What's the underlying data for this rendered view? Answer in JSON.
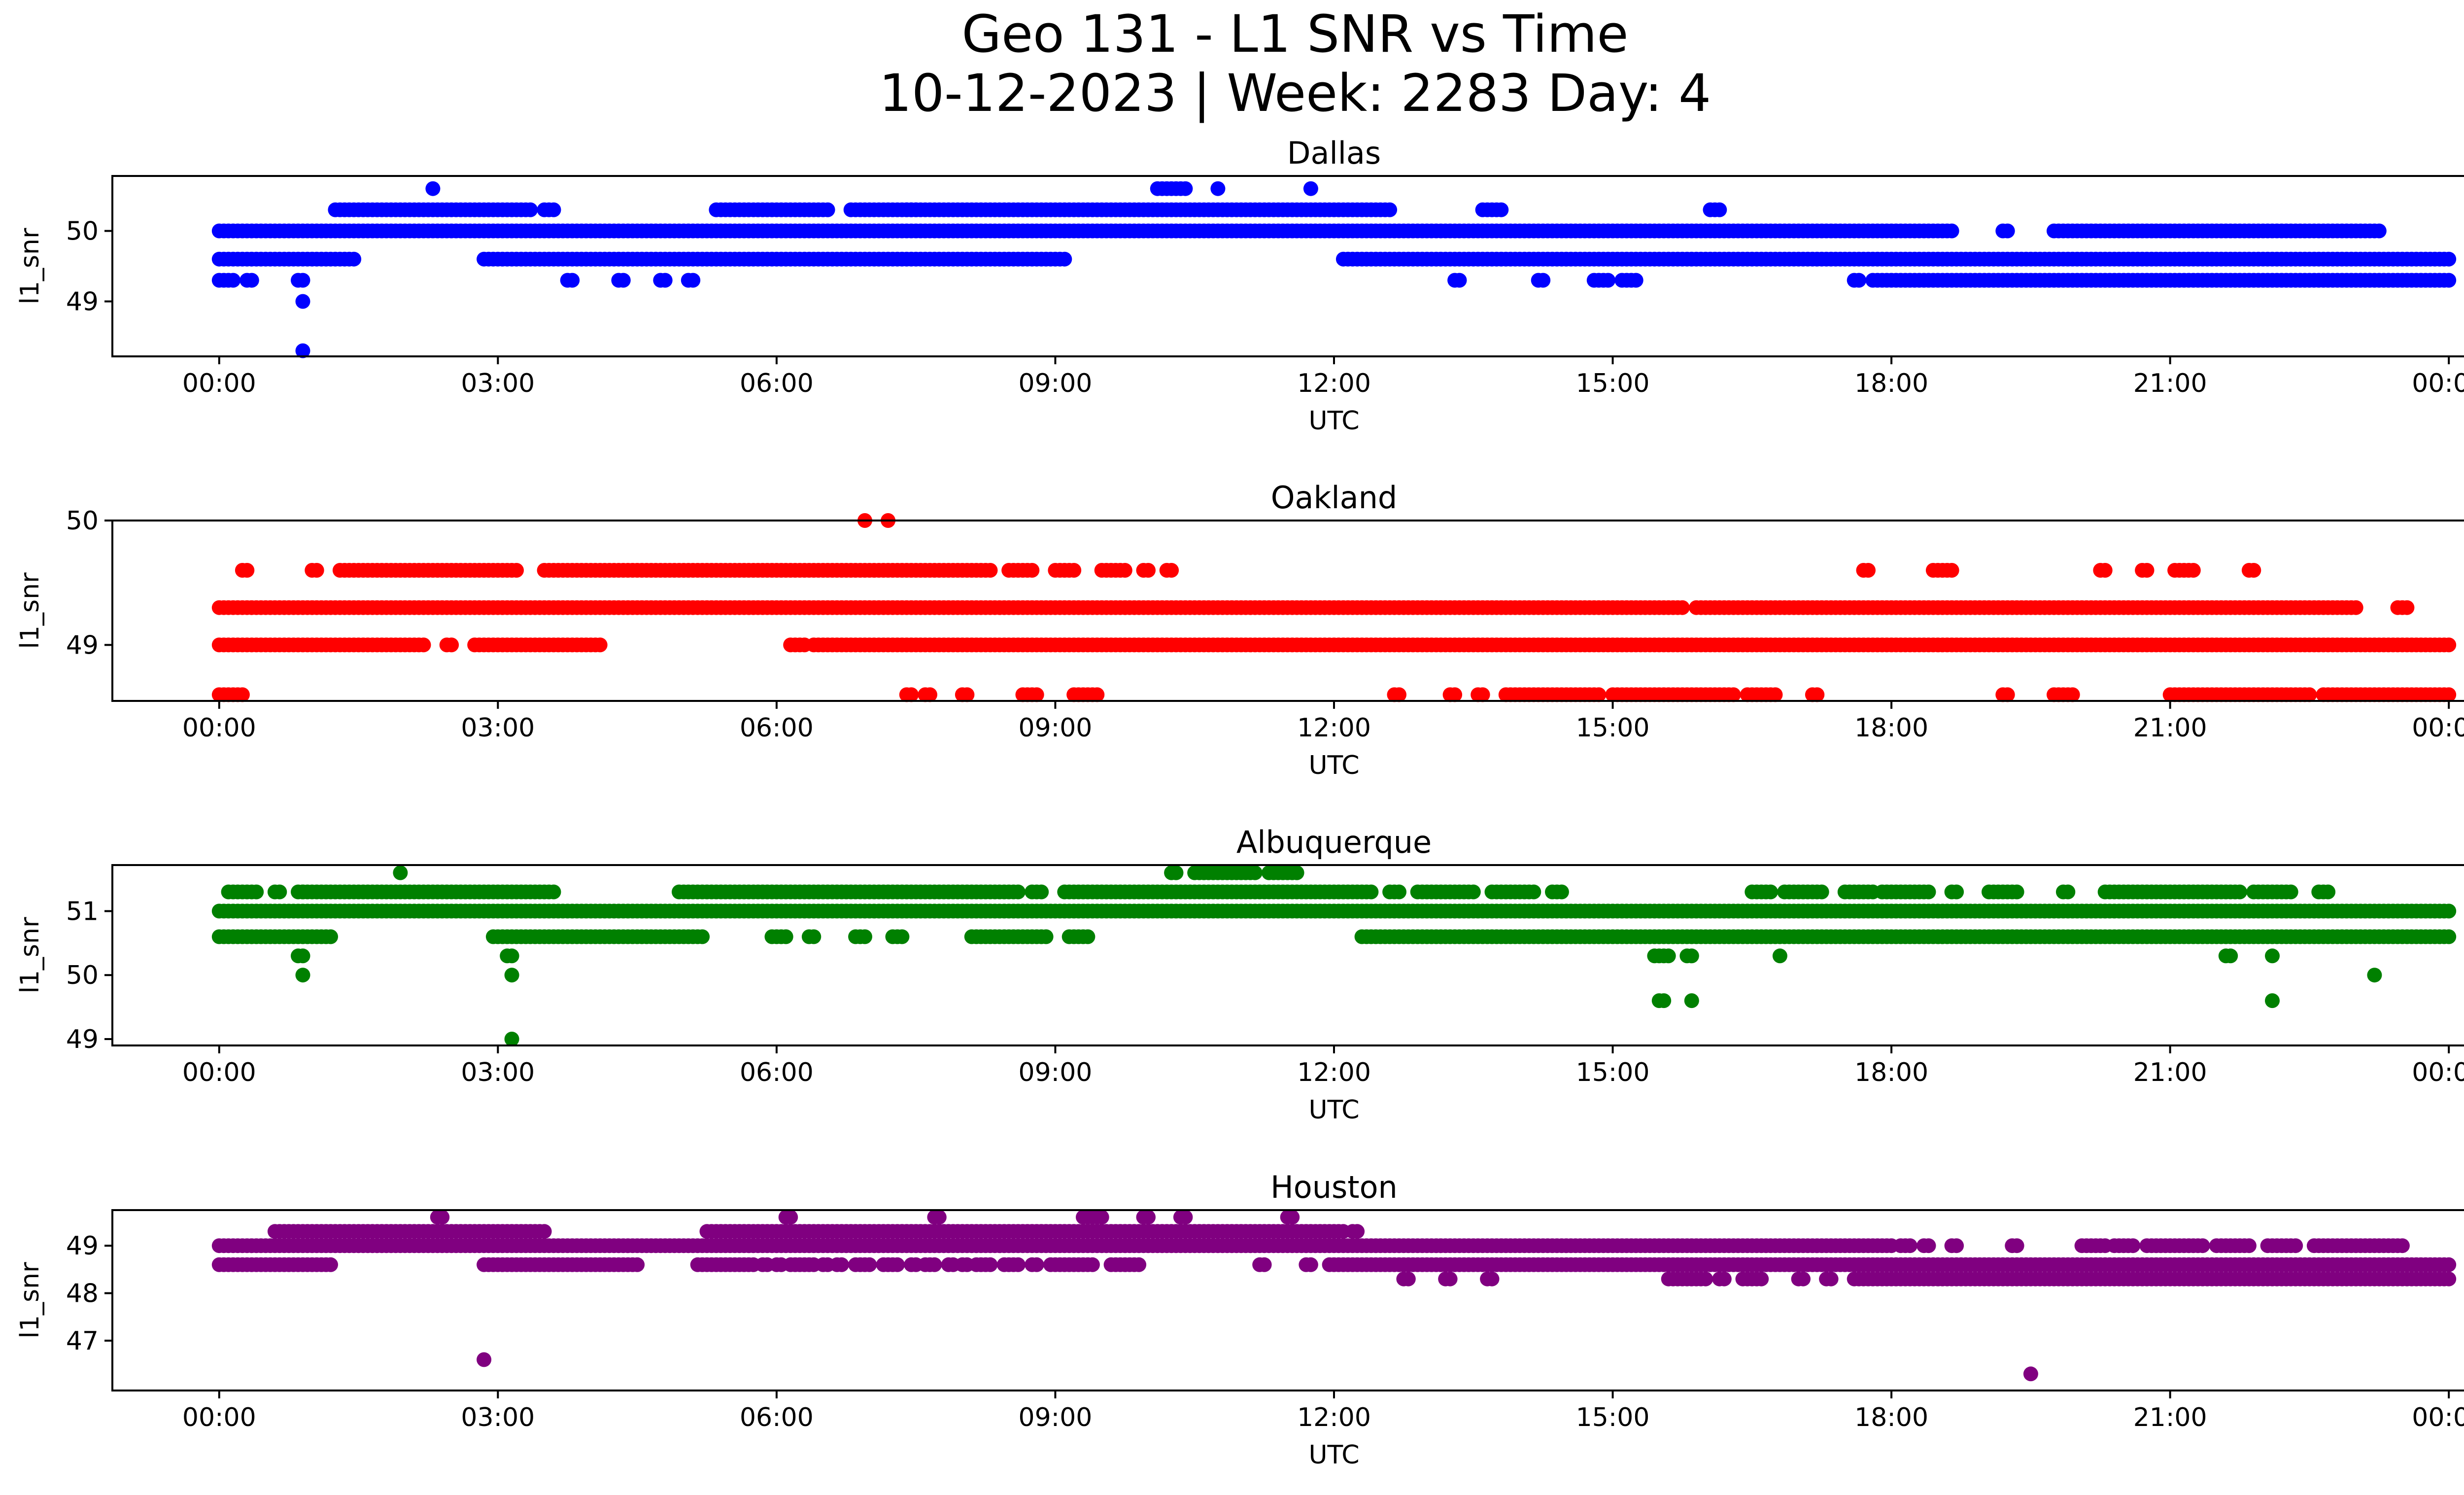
{
  "figure": {
    "title_line1": "Geo 131 - L1 SNR vs Time",
    "title_line2": "10-12-2023 | Week: 2283 Day: 4"
  },
  "chart_data": [
    {
      "type": "scatter",
      "title": "Dallas",
      "xlabel": "UTC",
      "ylabel": "l1_snr",
      "color": "#0000ff",
      "xticks": [
        "00:00",
        "03:00",
        "06:00",
        "09:00",
        "12:00",
        "15:00",
        "18:00",
        "21:00",
        "00:00"
      ],
      "yticks": [
        49,
        50
      ],
      "xlim_hours": [
        -1.15,
        25.15
      ],
      "ylim": [
        48.22,
        50.78
      ],
      "series": [
        {
          "value": 50.0,
          "segments": [
            [
              0,
              18.65
            ],
            [
              19.2,
              19.25
            ],
            [
              19.75,
              23.25
            ]
          ]
        },
        {
          "value": 49.6,
          "segments": [
            [
              0,
              1.45
            ],
            [
              2.85,
              3.05
            ],
            [
              3.1,
              9.1
            ],
            [
              12.1,
              24.0
            ]
          ]
        },
        {
          "value": 50.3,
          "segments": [
            [
              1.25,
              3.35
            ],
            [
              3.5,
              3.6
            ],
            [
              5.35,
              6.55
            ],
            [
              6.8,
              7.5
            ],
            [
              7.4,
              12.6
            ],
            [
              13.6,
              13.8
            ],
            [
              16.05,
              16.15
            ]
          ]
        },
        {
          "value": 49.3,
          "segments": [
            [
              0,
              0.15
            ],
            [
              0.3,
              0.35
            ],
            [
              0.85,
              0.9
            ],
            [
              3.75,
              3.8
            ],
            [
              4.3,
              4.35
            ],
            [
              4.75,
              4.8
            ],
            [
              5.05,
              5.1
            ],
            [
              13.3,
              13.35
            ],
            [
              14.2,
              14.25
            ],
            [
              14.8,
              14.95
            ],
            [
              15.1,
              15.25
            ],
            [
              17.6,
              17.65
            ],
            [
              17.8,
              24.0
            ]
          ]
        },
        {
          "value": 50.6,
          "segments": [
            [
              2.3,
              2.3
            ],
            [
              10.1,
              10.4
            ],
            [
              10.75,
              10.75
            ],
            [
              11.75,
              11.75
            ]
          ]
        },
        {
          "value": 49.0,
          "segments": [
            [
              0.9,
              0.9
            ]
          ]
        },
        {
          "value": 48.3,
          "segments": [
            [
              0.9,
              0.9
            ]
          ]
        }
      ]
    },
    {
      "type": "scatter",
      "title": "Oakland",
      "xlabel": "UTC",
      "ylabel": "l1_snr",
      "color": "#ff0000",
      "xticks": [
        "00:00",
        "03:00",
        "06:00",
        "09:00",
        "12:00",
        "15:00",
        "18:00",
        "21:00",
        "00:00"
      ],
      "yticks": [
        49,
        50
      ],
      "xlim_hours": [
        -1.15,
        25.15
      ],
      "ylim": [
        48.55,
        50.0
      ],
      "series": [
        {
          "value": 49.3,
          "segments": [
            [
              0,
              14.0
            ],
            [
              14.05,
              15.35
            ],
            [
              15.4,
              15.75
            ],
            [
              15.9,
              23.0
            ],
            [
              23.45,
              23.55
            ]
          ]
        },
        {
          "value": 49.0,
          "segments": [
            [
              0,
              2.2
            ],
            [
              2.45,
              2.5
            ],
            [
              2.75,
              4.1
            ],
            [
              6.15,
              6.3
            ],
            [
              6.4,
              24.0
            ]
          ]
        },
        {
          "value": 49.6,
          "segments": [
            [
              0.25,
              0.3
            ],
            [
              1.0,
              1.05
            ],
            [
              1.3,
              3.2
            ],
            [
              3.5,
              8.3
            ],
            [
              8.5,
              8.75
            ],
            [
              9.0,
              9.2
            ],
            [
              9.5,
              9.75
            ],
            [
              9.95,
              10.0
            ],
            [
              10.2,
              10.25
            ],
            [
              17.7,
              17.75
            ],
            [
              18.45,
              18.65
            ],
            [
              20.25,
              20.3
            ],
            [
              20.7,
              20.75
            ],
            [
              21.05,
              21.25
            ],
            [
              21.85,
              21.9
            ]
          ]
        },
        {
          "value": 48.6,
          "segments": [
            [
              0,
              0.25
            ],
            [
              7.4,
              7.45
            ],
            [
              7.6,
              7.65
            ],
            [
              8.0,
              8.05
            ],
            [
              8.65,
              8.8
            ],
            [
              9.2,
              9.45
            ],
            [
              12.65,
              12.7
            ],
            [
              13.25,
              13.3
            ],
            [
              13.55,
              13.6
            ],
            [
              13.85,
              14.85
            ],
            [
              15.0,
              16.3
            ],
            [
              16.45,
              16.75
            ],
            [
              17.15,
              17.2
            ],
            [
              19.2,
              19.25
            ],
            [
              19.75,
              19.95
            ],
            [
              21.0,
              22.5
            ],
            [
              22.65,
              24.0
            ]
          ]
        },
        {
          "value": 50.0,
          "segments": [
            [
              6.95,
              6.95
            ],
            [
              7.2,
              7.2
            ]
          ]
        }
      ]
    },
    {
      "type": "scatter",
      "title": "Albuquerque",
      "xlabel": "UTC",
      "ylabel": "l1_snr",
      "color": "#008000",
      "xticks": [
        "00:00",
        "03:00",
        "06:00",
        "09:00",
        "12:00",
        "15:00",
        "18:00",
        "21:00",
        "00:00"
      ],
      "yticks": [
        49,
        50,
        51
      ],
      "xlim_hours": [
        -1.15,
        25.15
      ],
      "ylim": [
        48.9,
        51.72
      ],
      "series": [
        {
          "value": 51.0,
          "segments": [
            [
              0,
              24.0
            ]
          ]
        },
        {
          "value": 50.6,
          "segments": [
            [
              0,
              1.2
            ],
            [
              2.95,
              5.2
            ],
            [
              5.95,
              6.1
            ],
            [
              6.35,
              6.4
            ],
            [
              6.85,
              6.95
            ],
            [
              7.25,
              7.35
            ],
            [
              8.1,
              8.9
            ],
            [
              9.15,
              9.35
            ],
            [
              12.3,
              24.0
            ]
          ]
        },
        {
          "value": 51.3,
          "segments": [
            [
              0.1,
              0.4
            ],
            [
              0.6,
              0.65
            ],
            [
              0.85,
              0.9
            ],
            [
              0.9,
              3.6
            ],
            [
              4.95,
              8.6
            ],
            [
              8.75,
              8.85
            ],
            [
              9.1,
              12.4
            ],
            [
              12.6,
              12.7
            ],
            [
              12.9,
              13.5
            ],
            [
              13.7,
              14.15
            ],
            [
              14.35,
              14.45
            ],
            [
              16.5,
              16.7
            ],
            [
              16.85,
              17.25
            ],
            [
              17.5,
              17.8
            ],
            [
              17.9,
              18.4
            ],
            [
              18.65,
              18.7
            ],
            [
              19.05,
              19.35
            ],
            [
              19.85,
              19.9
            ],
            [
              20.3,
              21.55
            ],
            [
              21.6,
              21.75
            ],
            [
              21.9,
              22.3
            ],
            [
              22.6,
              22.7
            ]
          ]
        },
        {
          "value": 51.6,
          "segments": [
            [
              1.95,
              1.95
            ],
            [
              10.25,
              10.3
            ],
            [
              10.5,
              11.15
            ],
            [
              11.3,
              11.6
            ]
          ]
        },
        {
          "value": 50.3,
          "segments": [
            [
              0.85,
              0.9
            ],
            [
              3.1,
              3.15
            ],
            [
              15.45,
              15.6
            ],
            [
              15.8,
              15.85
            ],
            [
              16.8,
              16.8
            ],
            [
              21.6,
              21.65
            ],
            [
              22.1,
              22.1
            ]
          ]
        },
        {
          "value": 50.0,
          "segments": [
            [
              0.9,
              0.9
            ],
            [
              3.15,
              3.15
            ],
            [
              23.2,
              23.2
            ]
          ]
        },
        {
          "value": 49.6,
          "segments": [
            [
              15.5,
              15.55
            ],
            [
              15.85,
              15.85
            ],
            [
              22.1,
              22.1
            ]
          ]
        },
        {
          "value": 49.0,
          "segments": [
            [
              3.15,
              3.15
            ]
          ]
        }
      ]
    },
    {
      "type": "scatter",
      "title": "Houston",
      "xlabel": "UTC",
      "ylabel": "l1_snr",
      "color": "#800080",
      "xticks": [
        "00:00",
        "03:00",
        "06:00",
        "09:00",
        "12:00",
        "15:00",
        "18:00",
        "21:00",
        "00:00"
      ],
      "yticks": [
        47,
        48,
        49
      ],
      "xlim_hours": [
        -1.15,
        25.15
      ],
      "ylim": [
        45.95,
        49.75
      ],
      "series": [
        {
          "value": 49.0,
          "segments": [
            [
              0,
              18.0
            ],
            [
              18.1,
              18.2
            ],
            [
              18.35,
              18.4
            ],
            [
              18.65,
              18.7
            ],
            [
              19.3,
              19.35
            ],
            [
              20.05,
              20.3
            ],
            [
              20.4,
              20.6
            ],
            [
              20.75,
              21.35
            ],
            [
              21.5,
              21.85
            ],
            [
              22.05,
              22.35
            ],
            [
              22.55,
              23.5
            ]
          ]
        },
        {
          "value": 49.3,
          "segments": [
            [
              0.6,
              0.85
            ],
            [
              0.9,
              3.5
            ],
            [
              5.25,
              12.1
            ],
            [
              12.2,
              12.25
            ]
          ]
        },
        {
          "value": 48.6,
          "segments": [
            [
              0,
              1.2
            ],
            [
              2.85,
              3.25
            ],
            [
              3.3,
              4.5
            ],
            [
              5.15,
              5.6
            ],
            [
              5.65,
              5.75
            ],
            [
              5.85,
              5.9
            ],
            [
              6.0,
              6.05
            ],
            [
              6.15,
              6.25
            ],
            [
              6.3,
              6.4
            ],
            [
              6.5,
              6.55
            ],
            [
              6.65,
              6.7
            ],
            [
              6.85,
              7.0
            ],
            [
              7.15,
              7.3
            ],
            [
              7.45,
              7.5
            ],
            [
              7.6,
              7.7
            ],
            [
              7.85,
              7.9
            ],
            [
              8.0,
              8.05
            ],
            [
              8.15,
              8.3
            ],
            [
              8.45,
              8.6
            ],
            [
              8.75,
              8.8
            ],
            [
              8.95,
              9.0
            ],
            [
              9.05,
              9.4
            ],
            [
              9.6,
              9.9
            ],
            [
              11.2,
              11.25
            ],
            [
              11.7,
              11.75
            ],
            [
              11.95,
              24.0
            ]
          ]
        },
        {
          "value": 48.3,
          "segments": [
            [
              12.75,
              12.8
            ],
            [
              13.2,
              13.25
            ],
            [
              13.65,
              13.7
            ],
            [
              15.6,
              16.0
            ],
            [
              16.15,
              16.2
            ],
            [
              16.4,
              16.6
            ],
            [
              17.0,
              17.05
            ],
            [
              17.3,
              17.35
            ],
            [
              17.6,
              24.0
            ]
          ]
        },
        {
          "value": 49.6,
          "segments": [
            [
              2.35,
              2.4
            ],
            [
              6.1,
              6.15
            ],
            [
              7.7,
              7.75
            ],
            [
              9.3,
              9.5
            ],
            [
              9.95,
              10.0
            ],
            [
              10.35,
              10.4
            ],
            [
              11.5,
              11.55
            ]
          ]
        },
        {
          "value": 46.6,
          "segments": [
            [
              2.85,
              2.85
            ]
          ]
        },
        {
          "value": 46.3,
          "segments": [
            [
              19.5,
              19.5
            ]
          ]
        }
      ]
    }
  ]
}
